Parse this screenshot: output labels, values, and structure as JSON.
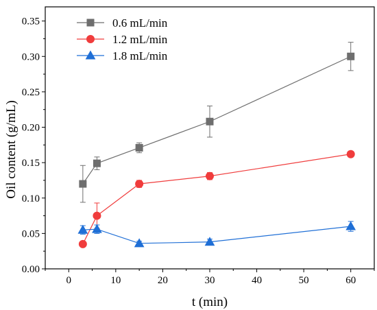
{
  "chart_data": {
    "type": "line",
    "title": "",
    "xlabel": "t (min)",
    "ylabel": "Oil content (g/mL)",
    "xlim": [
      -5,
      65
    ],
    "ylim": [
      0,
      0.37
    ],
    "xticks": [
      0,
      10,
      20,
      30,
      40,
      50,
      60
    ],
    "yticks": [
      0.0,
      0.05,
      0.1,
      0.15,
      0.2,
      0.25,
      0.3,
      0.35
    ],
    "xtick_labels": [
      "0",
      "10",
      "20",
      "30",
      "40",
      "50",
      "60"
    ],
    "ytick_labels": [
      "0.00",
      "0.05",
      "0.10",
      "0.15",
      "0.20",
      "0.25",
      "0.30",
      "0.35"
    ],
    "grid": false,
    "legend_position": "top-left",
    "series": [
      {
        "name": "0.6 mL/min",
        "color": "#6e6e6e",
        "marker": "square",
        "x": [
          3,
          6,
          15,
          30,
          60
        ],
        "y": [
          0.12,
          0.149,
          0.171,
          0.208,
          0.3
        ],
        "err": [
          0.026,
          0.009,
          0.007,
          0.022,
          0.02
        ]
      },
      {
        "name": "1.2 mL/min",
        "color": "#f03c3c",
        "marker": "circle",
        "x": [
          3,
          6,
          15,
          30,
          60
        ],
        "y": [
          0.035,
          0.075,
          0.12,
          0.131,
          0.162
        ],
        "err": [
          0.0,
          0.018,
          0.005,
          0.005,
          0.004
        ]
      },
      {
        "name": "1.8 mL/min",
        "color": "#1f6fd6",
        "marker": "triangle",
        "x": [
          3,
          6,
          15,
          30,
          60
        ],
        "y": [
          0.055,
          0.056,
          0.036,
          0.038,
          0.06
        ],
        "err": [
          0.006,
          0.006,
          0.003,
          0.004,
          0.007
        ]
      }
    ]
  }
}
